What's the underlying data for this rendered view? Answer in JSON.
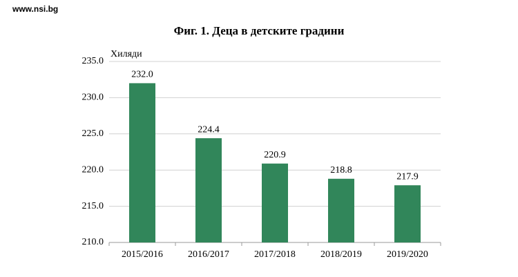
{
  "source": "www.nsi.bg",
  "chart_data": {
    "type": "bar",
    "title": "Фиг. 1. Деца в детските градини",
    "y_label": "Хиляди",
    "categories": [
      "2015/2016",
      "2016/2017",
      "2017/2018",
      "2018/2019",
      "2019/2020"
    ],
    "values": [
      232.0,
      224.4,
      220.9,
      218.8,
      217.9
    ],
    "value_labels": [
      "232.0",
      "224.4",
      "220.9",
      "218.8",
      "217.9"
    ],
    "color": "#31865a",
    "ylim": [
      210,
      235
    ],
    "yticks": [
      {
        "value": 210,
        "label": "210.0"
      },
      {
        "value": 215,
        "label": "215.0"
      },
      {
        "value": 220,
        "label": "220.0"
      },
      {
        "value": 225,
        "label": "225.0"
      },
      {
        "value": 230,
        "label": "230.0"
      },
      {
        "value": 235,
        "label": "235.0"
      }
    ],
    "grid": true
  }
}
